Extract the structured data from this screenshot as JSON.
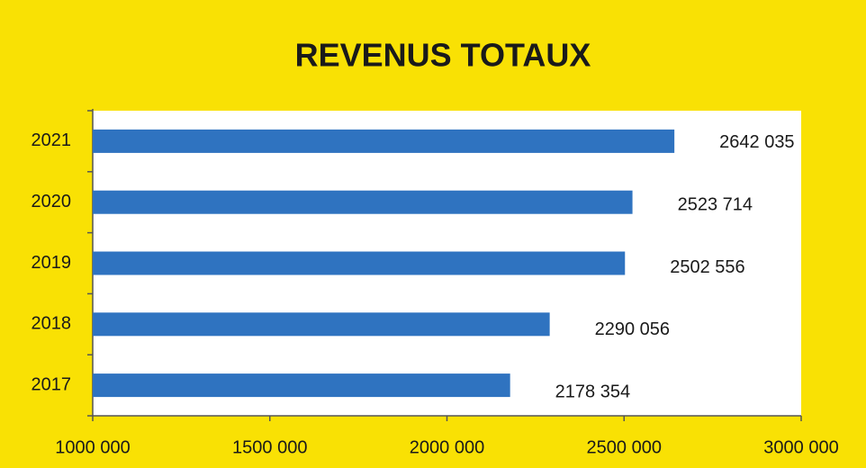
{
  "chart_data": {
    "type": "barh",
    "title": "REVENUS TOTAUX",
    "categories": [
      "2017",
      "2018",
      "2019",
      "2020",
      "2021"
    ],
    "values": [
      2178354,
      2290056,
      2502556,
      2523714,
      2642035
    ],
    "value_labels": [
      "2178 354",
      "2290 056",
      "2502 556",
      "2523 714",
      "2642 035"
    ],
    "color": "#2f73c0",
    "xlim": [
      1000000,
      3000000
    ],
    "xticks": [
      {
        "value": 1000000,
        "label": "1000 000"
      },
      {
        "value": 1500000,
        "label": "1500 000"
      },
      {
        "value": 2000000,
        "label": "2000 000"
      },
      {
        "value": 2500000,
        "label": "2500 000"
      },
      {
        "value": 3000000,
        "label": "3000 000"
      }
    ],
    "background": "#f9e104",
    "plot_background": "#ffffff"
  }
}
